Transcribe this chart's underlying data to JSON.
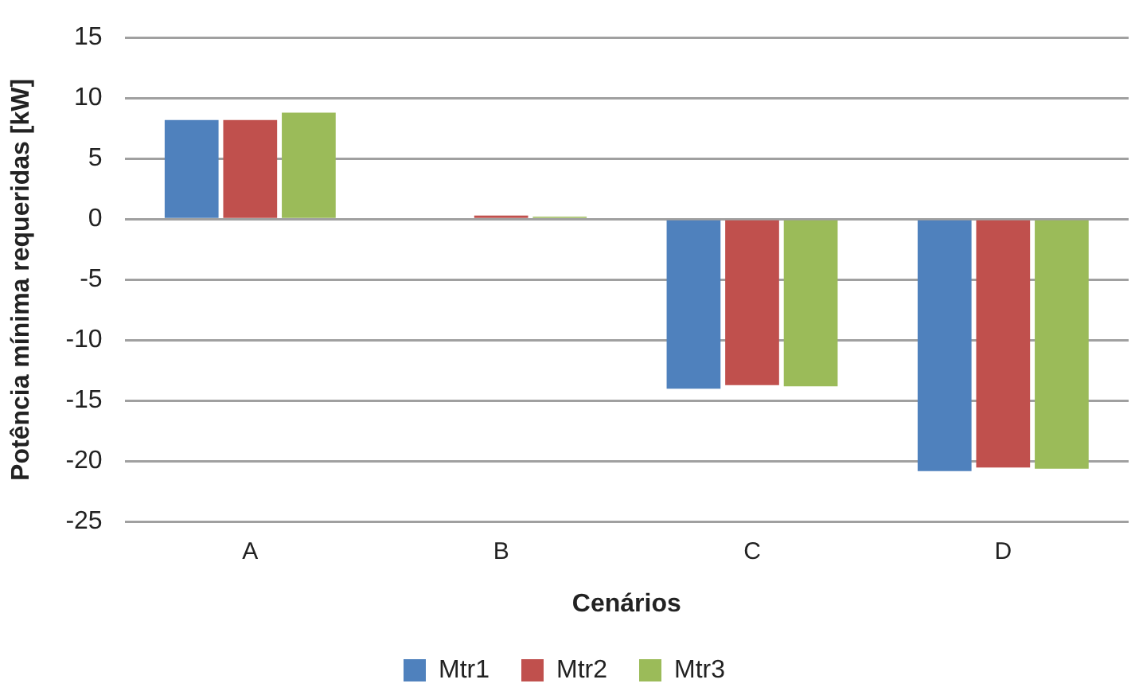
{
  "chart_data": {
    "type": "bar",
    "xlabel": "Cenários",
    "ylabel": "Potência mínima requeridas [kW]",
    "categories": [
      "A",
      "B",
      "C",
      "D"
    ],
    "series": [
      {
        "name": "Mtr1",
        "color": "#4f81bd",
        "values": [
          8.2,
          0,
          -14.0,
          -20.8
        ]
      },
      {
        "name": "Mtr2",
        "color": "#c0504d",
        "values": [
          8.2,
          0.3,
          -13.7,
          -20.5
        ]
      },
      {
        "name": "Mtr3",
        "color": "#9bbb59",
        "values": [
          8.8,
          0.2,
          -13.8,
          -20.6
        ]
      }
    ],
    "ylim": [
      -25,
      15
    ],
    "yticks": [
      -25,
      -20,
      -15,
      -10,
      -5,
      0,
      5,
      10,
      15
    ],
    "grid": "y",
    "legend": "bottom"
  }
}
